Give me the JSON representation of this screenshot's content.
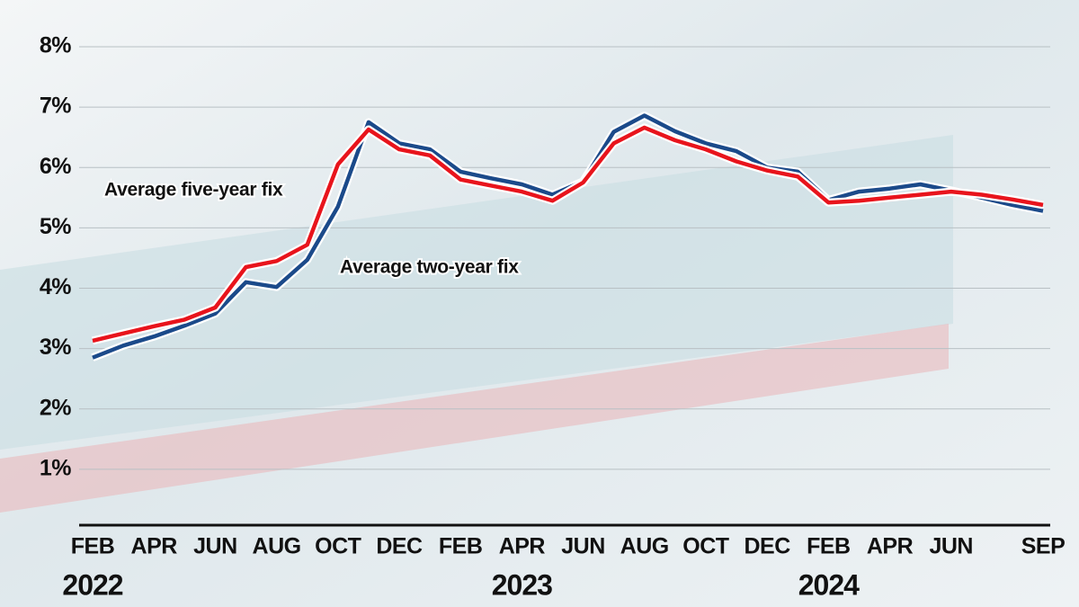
{
  "chart_data": {
    "type": "line",
    "categories": [
      "FEB",
      null,
      "APR",
      null,
      "JUN",
      null,
      "AUG",
      null,
      "OCT",
      null,
      "DEC",
      null,
      "FEB",
      null,
      "APR",
      null,
      "JUN",
      null,
      "AUG",
      null,
      "OCT",
      null,
      "DEC",
      null,
      "FEB",
      null,
      "APR",
      null,
      "JUN",
      null,
      null,
      "SEP"
    ],
    "years": [
      "2022",
      "2023",
      "2024"
    ],
    "series": [
      {
        "name": "Average two-year fix",
        "color": "#1b4a8a",
        "values": [
          2.85,
          3.05,
          3.2,
          3.38,
          3.58,
          4.1,
          4.02,
          4.47,
          5.35,
          6.75,
          6.4,
          6.3,
          5.93,
          5.82,
          5.72,
          5.55,
          5.77,
          6.59,
          6.86,
          6.6,
          6.4,
          6.27,
          6.0,
          5.93,
          5.46,
          5.6,
          5.65,
          5.72,
          5.62,
          5.5,
          5.38,
          5.28
        ]
      },
      {
        "name": "Average five-year fix",
        "color": "#e8141c",
        "values": [
          3.13,
          3.25,
          3.37,
          3.48,
          3.68,
          4.35,
          4.45,
          4.72,
          6.05,
          6.63,
          6.3,
          6.2,
          5.8,
          5.7,
          5.6,
          5.45,
          5.75,
          6.4,
          6.66,
          6.45,
          6.3,
          6.1,
          5.95,
          5.85,
          5.42,
          5.45,
          5.5,
          5.55,
          5.6,
          5.55,
          5.47,
          5.38
        ]
      }
    ],
    "ylim": [
      0,
      8
    ],
    "yticks": [
      {
        "value": 1,
        "label": "1%"
      },
      {
        "value": 2,
        "label": "2%"
      },
      {
        "value": 3,
        "label": "3%"
      },
      {
        "value": 4,
        "label": "4%"
      },
      {
        "value": 5,
        "label": "5%"
      },
      {
        "value": 6,
        "label": "6%"
      },
      {
        "value": 7,
        "label": "7%"
      },
      {
        "value": 8,
        "label": "8%"
      }
    ],
    "grid": true
  }
}
